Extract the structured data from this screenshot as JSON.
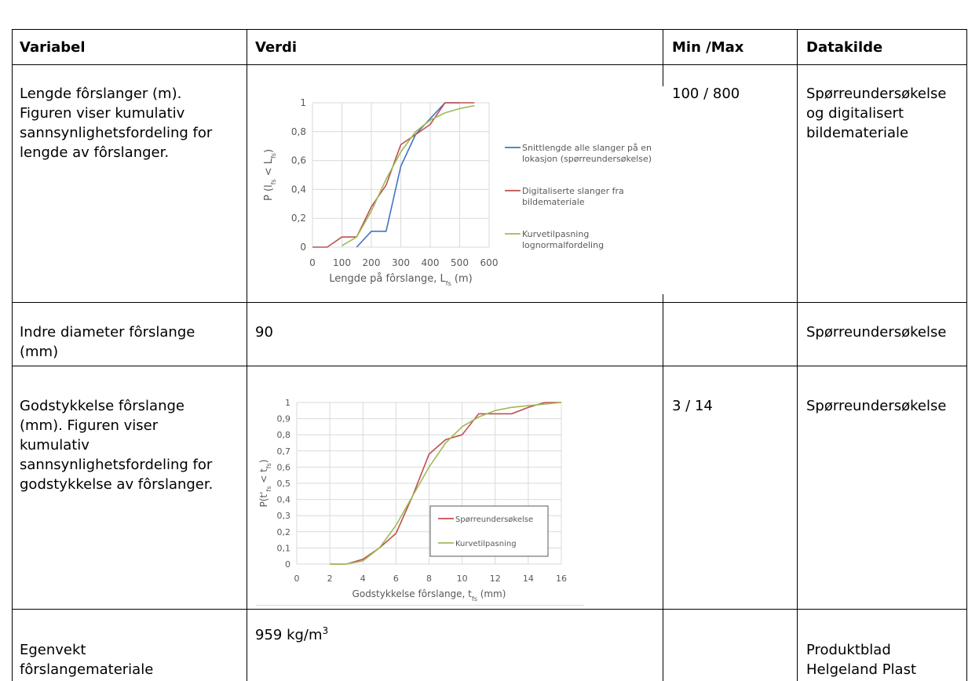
{
  "table": {
    "headers": [
      "Variabel",
      "Verdi",
      "Min /Max",
      "Datakilde"
    ],
    "rows": [
      {
        "variabel": [
          "Lengde fôrslanger (m).",
          "Figuren viser kumulativ",
          "sannsynlighetsfordeling for",
          "lengde av fôrslanger."
        ],
        "verdi": "",
        "minmax": "100 / 800",
        "datakilde": [
          "Spørreundersøkelse",
          "og digitalisert",
          "bildemateriale"
        ]
      },
      {
        "variabel": [
          "Indre diameter fôrslange",
          "(mm)"
        ],
        "verdi": "90",
        "minmax": "",
        "datakilde": [
          "Spørreundersøkelse"
        ]
      },
      {
        "variabel": [
          "Godstykkelse fôrslange",
          "(mm). Figuren viser",
          "kumulativ",
          "sannsynlighetsfordeling for",
          "godstykkelse av fôrslanger."
        ],
        "verdi": "",
        "minmax": "3 / 14",
        "datakilde": [
          "Spørreundersøkelse"
        ]
      },
      {
        "variabel": [
          "Egenvekt",
          "fôrslangemateriale"
        ],
        "verdi_prefix": "959 kg/m",
        "verdi_sup": "3",
        "minmax": "",
        "datakilde": [
          "Produktblad",
          "Helgeland Plast"
        ]
      }
    ]
  },
  "chart_data": [
    {
      "type": "line",
      "xlabel_main": "Lengde på fôrslange, L",
      "xlabel_sub": "fs",
      "xlabel_unit": " (m)",
      "ylabel_text": "P (l",
      "ylabel_sub1": "fs",
      "ylabel_mid": " < L",
      "ylabel_sub2": "fs",
      "ylabel_end": ")",
      "xlim": [
        0,
        600
      ],
      "ylim": [
        0,
        1
      ],
      "xticks": [
        "0",
        "100",
        "200",
        "300",
        "400",
        "500",
        "600"
      ],
      "yticks": [
        "0",
        "0,2",
        "0,4",
        "0,6",
        "0,8",
        "1"
      ],
      "grid": true,
      "legend_position": "right",
      "series": [
        {
          "name": "Snittlengde alle slanger på en lokasjon (spørreundersøkelse)",
          "legend_lines": [
            "Snittlengde alle slanger på en",
            "lokasjon (spørreundersøkelse)"
          ],
          "color": "#4472c4",
          "x": [
            150,
            200,
            250,
            300,
            350,
            400,
            450,
            500
          ],
          "y": [
            0,
            0.11,
            0.11,
            0.56,
            0.78,
            0.89,
            1,
            1
          ]
        },
        {
          "name": "Digitaliserte slanger fra bildemateriale",
          "legend_lines": [
            "Digitaliserte slanger fra",
            "bildemateriale"
          ],
          "color": "#c0504d",
          "x": [
            0,
            50,
            100,
            150,
            200,
            250,
            300,
            350,
            400,
            450,
            500,
            550
          ],
          "y": [
            0,
            0,
            0.07,
            0.07,
            0.28,
            0.43,
            0.71,
            0.78,
            0.85,
            1,
            1,
            1
          ]
        },
        {
          "name": "Kurvetilpasning lognormalfordeling",
          "legend_lines": [
            "Kurvetilpasning",
            "lognormalfordeling"
          ],
          "color": "#9bbb59",
          "x": [
            100,
            150,
            200,
            250,
            300,
            350,
            400,
            450,
            500,
            550
          ],
          "y": [
            0.01,
            0.07,
            0.25,
            0.47,
            0.66,
            0.8,
            0.88,
            0.93,
            0.96,
            0.98
          ]
        }
      ]
    },
    {
      "type": "line",
      "xlabel_main": "Godstykkelse fôrslange, t",
      "xlabel_sub": "fs",
      "xlabel_unit": " (mm)",
      "ylabel_text": "P(t'",
      "ylabel_sub1": "fs",
      "ylabel_mid": " < t",
      "ylabel_sub2": "fs",
      "ylabel_end": ")",
      "xlim": [
        0,
        16
      ],
      "ylim": [
        0,
        1
      ],
      "xticks": [
        "0",
        "2",
        "4",
        "6",
        "8",
        "10",
        "12",
        "14",
        "16"
      ],
      "yticks": [
        "0",
        "0,1",
        "0,2",
        "0,3",
        "0,4",
        "0,5",
        "0,6",
        "0,7",
        "0,8",
        "0,9",
        "1"
      ],
      "grid": true,
      "legend_position": "inside-bottom-right",
      "series": [
        {
          "name": "Spørreundersøkelse",
          "legend_lines": [
            "Spørreundersøkelse"
          ],
          "color": "#c0504d",
          "x": [
            2,
            3,
            4,
            5,
            6,
            7,
            8,
            9,
            10,
            11,
            12,
            13,
            14,
            15,
            16
          ],
          "y": [
            0,
            0,
            0.03,
            0.1,
            0.19,
            0.42,
            0.68,
            0.77,
            0.8,
            0.93,
            0.93,
            0.93,
            0.97,
            1,
            1
          ]
        },
        {
          "name": "Kurvetilpasning",
          "legend_lines": [
            "Kurvetilpasning"
          ],
          "color": "#9bbb59",
          "x": [
            2,
            3,
            4,
            5,
            6,
            7,
            8,
            9,
            10,
            11,
            12,
            13,
            14,
            15,
            16
          ],
          "y": [
            0,
            0,
            0.02,
            0.1,
            0.24,
            0.42,
            0.6,
            0.75,
            0.85,
            0.91,
            0.95,
            0.97,
            0.98,
            0.99,
            1
          ]
        }
      ]
    }
  ]
}
